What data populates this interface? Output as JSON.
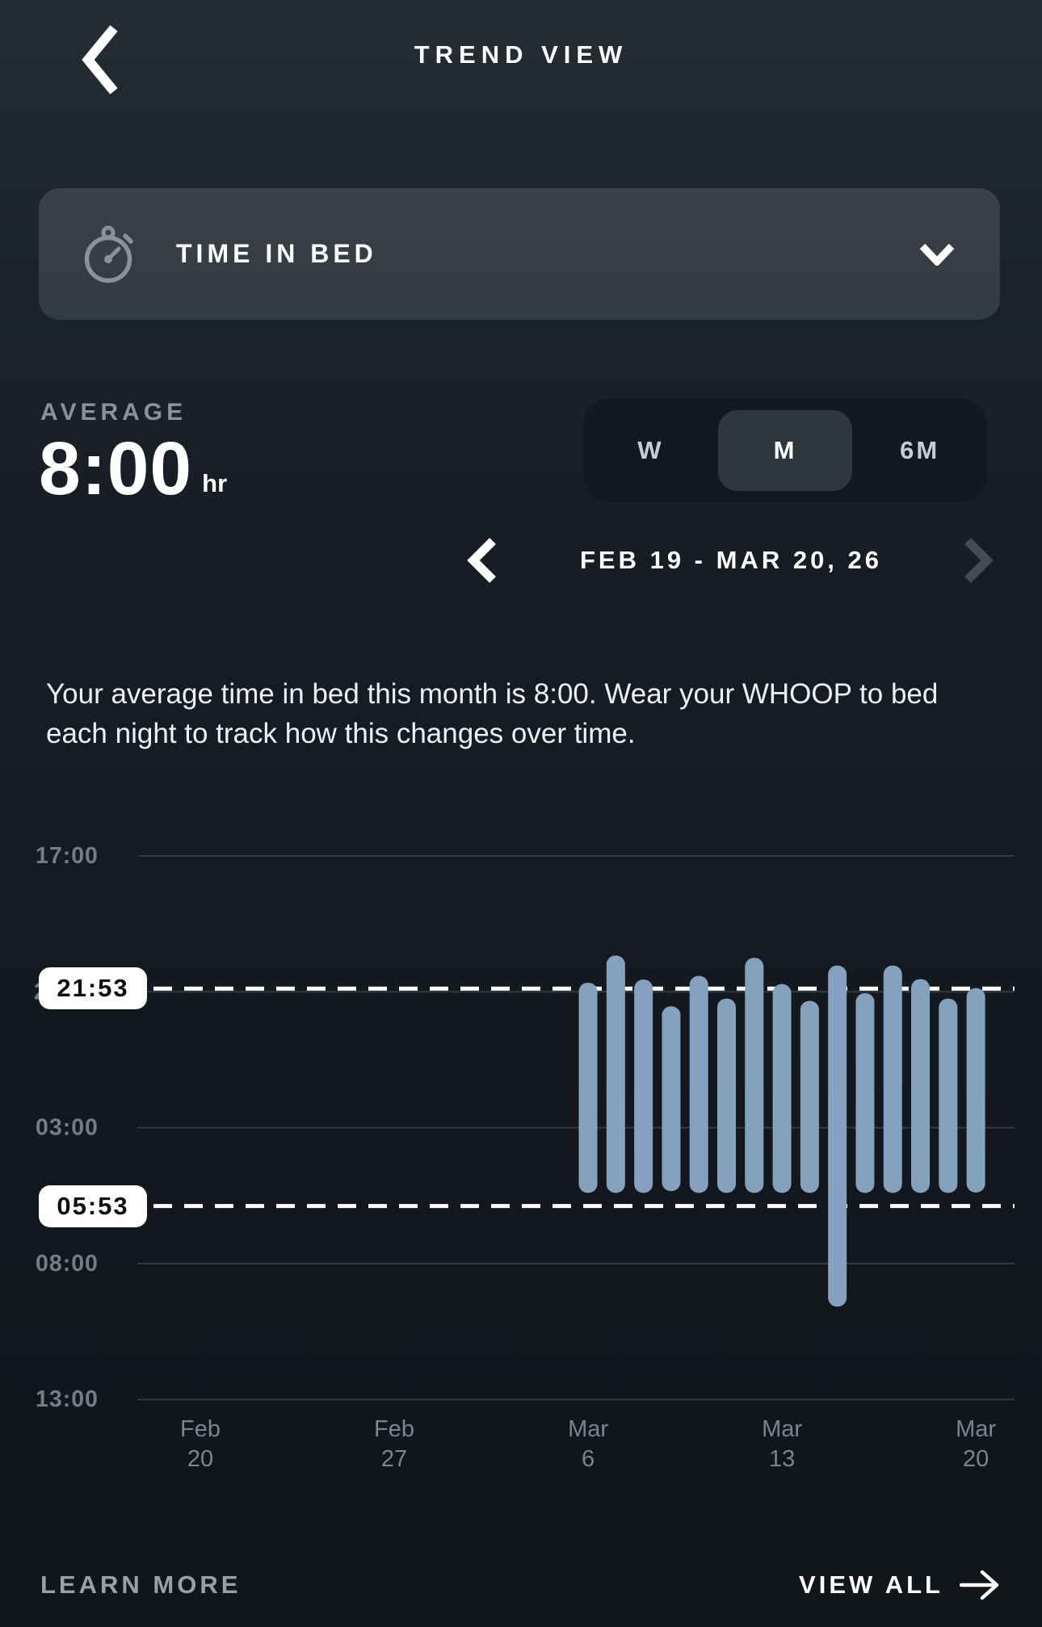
{
  "header": {
    "title": "TREND VIEW"
  },
  "metric_selector": {
    "label": "TIME IN BED"
  },
  "average": {
    "label": "AVERAGE",
    "value": "8:00",
    "unit": "hr"
  },
  "range_tabs": [
    {
      "label": "W",
      "selected": false
    },
    {
      "label": "M",
      "selected": true
    },
    {
      "label": "6M",
      "selected": false
    }
  ],
  "date_nav": {
    "range": "FEB 19 - MAR 20, 26"
  },
  "description": "Your average time in bed this month is 8:00. Wear your WHOOP to bed each night to track how this changes over time.",
  "footer": {
    "learn_more": "LEARN MORE",
    "view_all": "VIEW ALL"
  },
  "chart_data": {
    "type": "bar",
    "subtype": "floating-time-range-bars",
    "bar_color": "#84a2bd",
    "grid_color": "#343a40",
    "y_axis": {
      "ticks": [
        "17:00",
        "22:00",
        "03:00",
        "08:00",
        "13:00"
      ],
      "start_hour": 17,
      "hours_between_ticks": 5
    },
    "reference_lines": [
      {
        "label": "21:53",
        "time": "21:53",
        "meaning": "average bedtime"
      },
      {
        "label": "05:53",
        "time": "05:53",
        "meaning": "average wake time"
      }
    ],
    "x_range": {
      "start": "Feb 19",
      "end": "Mar 20",
      "days": 30
    },
    "x_ticks": [
      {
        "month": "Feb",
        "day": "20",
        "day_index": 1
      },
      {
        "month": "Feb",
        "day": "27",
        "day_index": 8
      },
      {
        "month": "Mar",
        "day": "6",
        "day_index": 15
      },
      {
        "month": "Mar",
        "day": "13",
        "day_index": 22
      },
      {
        "month": "Mar",
        "day": "20",
        "day_index": 29
      }
    ],
    "bars": [
      {
        "date": "Mar 6",
        "day_index": 15,
        "start": "21:40",
        "end": "05:24"
      },
      {
        "date": "Mar 7",
        "day_index": 16,
        "start": "20:40",
        "end": "05:24"
      },
      {
        "date": "Mar 8",
        "day_index": 17,
        "start": "21:33",
        "end": "05:24"
      },
      {
        "date": "Mar 9",
        "day_index": 18,
        "start": "22:32",
        "end": "05:20"
      },
      {
        "date": "Mar 10",
        "day_index": 19,
        "start": "21:25",
        "end": "05:24"
      },
      {
        "date": "Mar 11",
        "day_index": 20,
        "start": "22:15",
        "end": "05:24"
      },
      {
        "date": "Mar 12",
        "day_index": 21,
        "start": "20:45",
        "end": "05:24"
      },
      {
        "date": "Mar 13",
        "day_index": 22,
        "start": "21:43",
        "end": "05:24"
      },
      {
        "date": "Mar 14",
        "day_index": 23,
        "start": "22:20",
        "end": "05:24"
      },
      {
        "date": "Mar 15",
        "day_index": 24,
        "start": "21:02",
        "end": "09:35"
      },
      {
        "date": "Mar 16",
        "day_index": 25,
        "start": "22:03",
        "end": "05:24"
      },
      {
        "date": "Mar 17",
        "day_index": 26,
        "start": "21:02",
        "end": "05:24"
      },
      {
        "date": "Mar 18",
        "day_index": 27,
        "start": "21:32",
        "end": "05:24"
      },
      {
        "date": "Mar 19",
        "day_index": 28,
        "start": "22:15",
        "end": "05:24"
      },
      {
        "date": "Mar 20",
        "day_index": 29,
        "start": "21:52",
        "end": "05:23"
      }
    ]
  }
}
